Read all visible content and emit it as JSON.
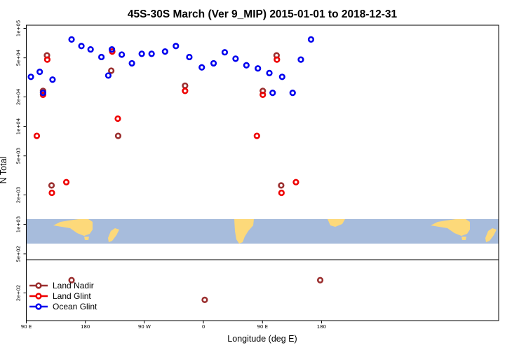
{
  "chart_data": {
    "type": "scatter",
    "title": "45S-30S March (Ver 9_MIP)   2015-01-01 to 2018-12-31",
    "xlabel": "Longitude (deg E)",
    "ylabel": "N Total",
    "y_scale": "log",
    "x_range_deg_east": [
      90,
      450
    ],
    "ylim": [
      150,
      100000
    ],
    "x_ticks": [
      {
        "value": 90,
        "label": "90 E"
      },
      {
        "value": 180,
        "label": "180"
      },
      {
        "value": 270,
        "label": "90 W"
      },
      {
        "value": 360,
        "label": "0"
      },
      {
        "value": 450,
        "label": "90 E"
      },
      {
        "value": 540,
        "label": "180"
      }
    ],
    "y_ticks": [
      {
        "value": 100000,
        "label": "1e+05"
      },
      {
        "value": 50000,
        "label": "5e+04"
      },
      {
        "value": 20000,
        "label": "2e+04"
      },
      {
        "value": 10000,
        "label": "1e+04"
      },
      {
        "value": 5000,
        "label": "5e+03"
      },
      {
        "value": 2000,
        "label": "2e+03"
      },
      {
        "value": 1000,
        "label": "1e+03"
      },
      {
        "value": 500,
        "label": "5e+02"
      },
      {
        "value": 200,
        "label": "2e+02"
      }
    ],
    "legend_position": "bottom-left",
    "colors": {
      "land_nadir": "#9b2f2f",
      "land_glint": "#ee0000",
      "ocean_glint": "#0000ee",
      "map_ocean": "#a7bcdc",
      "map_land": "#fdd97a"
    },
    "series": [
      {
        "name": "Land Nadir",
        "points": [
          [
            115.5,
            23000
          ],
          [
            121.5,
            53000
          ],
          [
            128.5,
            2500
          ],
          [
            219.5,
            37000
          ],
          [
            230,
            8000
          ],
          [
            332,
            26000
          ],
          [
            450.5,
            23000
          ],
          [
            471.5,
            53000
          ],
          [
            478.5,
            2500
          ],
          [
            159,
            270
          ],
          [
            362,
            170
          ],
          [
            538,
            270
          ]
        ]
      },
      {
        "name": "Land Glint",
        "points": [
          [
            106,
            8000
          ],
          [
            115.5,
            21000
          ],
          [
            122,
            48000
          ],
          [
            129,
            2100
          ],
          [
            151,
            2700
          ],
          [
            221,
            58000
          ],
          [
            229.5,
            12000
          ],
          [
            332,
            23000
          ],
          [
            441.5,
            8000
          ],
          [
            450.5,
            21000
          ],
          [
            472,
            48000
          ],
          [
            479,
            2100
          ],
          [
            501,
            2700
          ]
        ]
      },
      {
        "name": "Ocean Glint",
        "points": [
          [
            97,
            32000
          ],
          [
            110.5,
            36000
          ],
          [
            130,
            30000
          ],
          [
            159,
            77000
          ],
          [
            174,
            66000
          ],
          [
            188,
            61000
          ],
          [
            204.5,
            51000
          ],
          [
            220.5,
            61000
          ],
          [
            235.5,
            54000
          ],
          [
            251,
            44000
          ],
          [
            266,
            55000
          ],
          [
            281,
            55000
          ],
          [
            301.5,
            58000
          ],
          [
            318,
            66000
          ],
          [
            338.5,
            51000
          ],
          [
            357.5,
            40000
          ],
          [
            375.5,
            44000
          ],
          [
            392.5,
            57000
          ],
          [
            409,
            49000
          ],
          [
            425.5,
            42000
          ],
          [
            443,
            39000
          ],
          [
            460.5,
            35000
          ],
          [
            480,
            32000
          ],
          [
            496,
            22000
          ],
          [
            508.5,
            48000
          ],
          [
            524,
            77000
          ],
          [
            215,
            33000
          ],
          [
            115.5,
            22000
          ],
          [
            465.5,
            22000
          ]
        ]
      }
    ]
  }
}
